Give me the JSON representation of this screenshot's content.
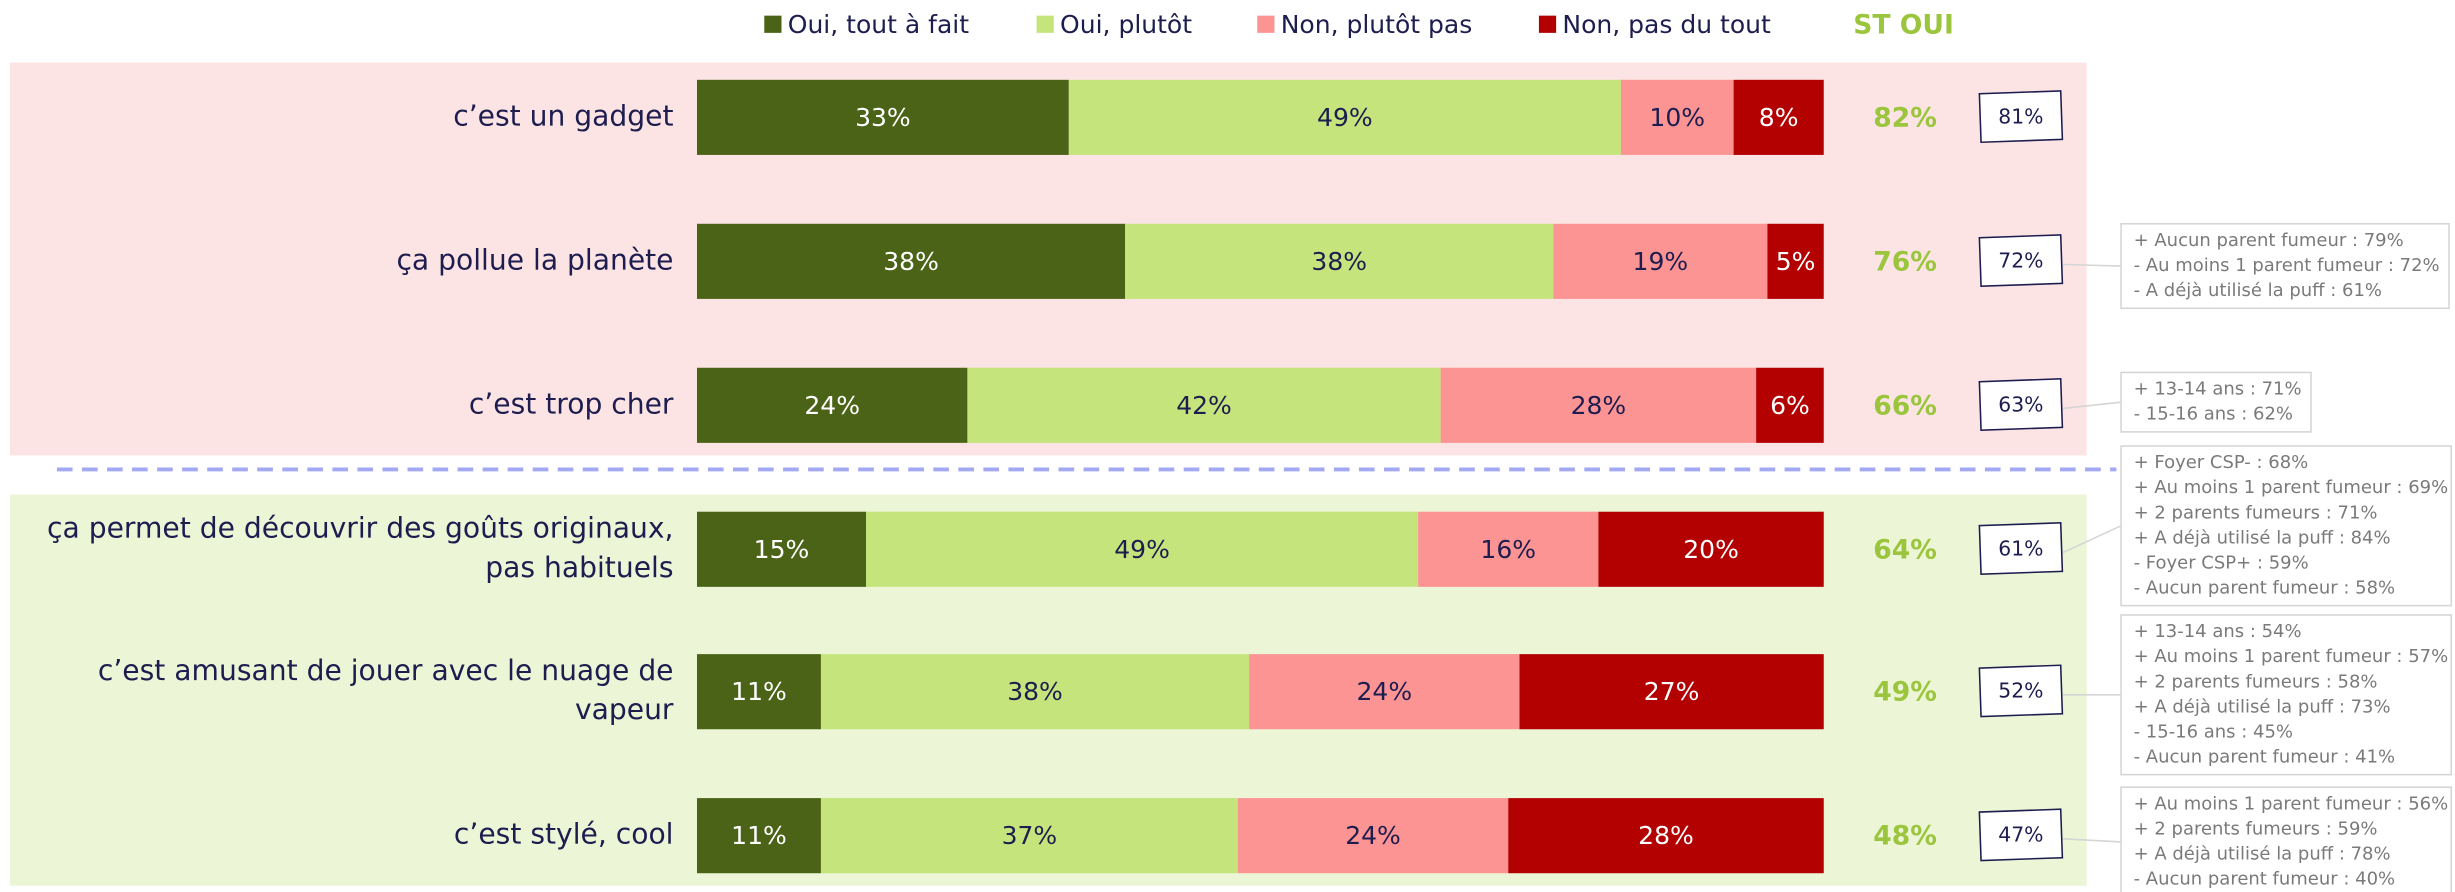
{
  "chart_data": {
    "type": "bar",
    "orientation": "horizontal",
    "stacked": true,
    "categories": [
      "c’est un gadget",
      "ça pollue la planète",
      "c’est trop cher",
      "ça permet de découvrir des goûts originaux,\npas habituels",
      "c’est amusant de jouer avec le nuage de\nvapeur",
      "c’est stylé, cool"
    ],
    "xlim": [
      0,
      100
    ],
    "series": [
      {
        "name": "Oui, tout à fait",
        "color": "#4b6316",
        "text_color": "#ffffff",
        "values": [
          33,
          38,
          24,
          15,
          11,
          11
        ],
        "value_labels": [
          "33%",
          "38%",
          "24%",
          "15%",
          "11%",
          "11%"
        ]
      },
      {
        "name": "Oui, plutôt",
        "color": "#c5e57c",
        "text_color": "#1d1d4f",
        "values": [
          49,
          38,
          42,
          49,
          38,
          37
        ],
        "value_labels": [
          "49%",
          "38%",
          "42%",
          "49%",
          "38%",
          "37%"
        ]
      },
      {
        "name": "Non, plutôt pas",
        "color": "#fd9494",
        "text_color": "#1d1d4f",
        "values": [
          10,
          19,
          28,
          16,
          24,
          24
        ],
        "value_labels": [
          "10%",
          "19%",
          "28%",
          "16%",
          "24%",
          "24%"
        ]
      },
      {
        "name": "Non, pas du tout",
        "color": "#b30000",
        "text_color": "#ffffff",
        "values": [
          8,
          5,
          6,
          20,
          27,
          28
        ],
        "value_labels": [
          "8%",
          "5%",
          "6%",
          "20%",
          "27%",
          "28%"
        ]
      }
    ],
    "st_oui": {
      "title": "ST OUI",
      "color": "#9bc53d",
      "values": [
        82,
        76,
        66,
        64,
        49,
        48
      ],
      "value_labels": [
        "82%",
        "76%",
        "66%",
        "64%",
        "49%",
        "48%"
      ]
    },
    "box_values": {
      "values": [
        81,
        72,
        63,
        61,
        52,
        47
      ],
      "value_labels": [
        "81%",
        "72%",
        "63%",
        "61%",
        "52%",
        "47%"
      ]
    },
    "notes": [
      null,
      [
        "+ Aucun parent fumeur : 79%",
        "- Au moins 1 parent fumeur : 72%",
        "- A déjà utilisé la puff : 61%"
      ],
      [
        "+ 13-14 ans : 71%",
        "- 15-16 ans : 62%"
      ],
      [
        "+ Foyer CSP- : 68%",
        "+ Au moins 1 parent fumeur : 69%",
        "+ 2 parents fumeurs : 71%",
        "+ A déjà utilisé la puff : 84%",
        "- Foyer CSP+ : 59%",
        "- Aucun parent fumeur : 58%"
      ],
      [
        "+ 13-14 ans : 54%",
        "+ Au moins 1 parent fumeur : 57%",
        "+ 2 parents fumeurs : 58%",
        "+ A déjà utilisé la puff : 73%",
        "- 15-16 ans : 45%",
        "- Aucun parent fumeur : 41%"
      ],
      [
        "+ Au moins 1 parent fumeur : 56%",
        "+ 2 parents fumeurs : 59%",
        "+ A déjà utilisé la puff : 78%",
        "- Aucun parent fumeur : 40%"
      ]
    ]
  }
}
